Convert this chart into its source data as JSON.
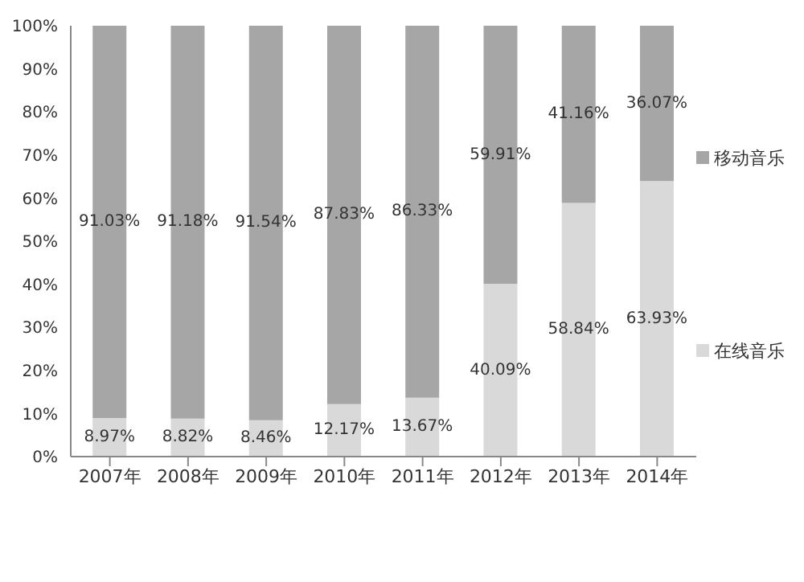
{
  "chart_data": {
    "type": "bar",
    "stacked": true,
    "categories": [
      "2007年",
      "2008年",
      "2009年",
      "2010年",
      "2011年",
      "2012年",
      "2013年",
      "2014年"
    ],
    "series": [
      {
        "name": "在线音乐",
        "color": "#d9d9d9",
        "values": [
          8.97,
          8.82,
          8.46,
          12.17,
          13.67,
          40.09,
          58.84,
          63.93
        ],
        "value_labels": [
          "8.97%",
          "8.82%",
          "8.46%",
          "12.17%",
          "13.67%",
          "40.09%",
          "58.84%",
          "63.93%"
        ]
      },
      {
        "name": "移动音乐",
        "color": "#a6a6a6",
        "values": [
          91.03,
          91.18,
          91.54,
          87.83,
          86.33,
          59.91,
          41.16,
          36.07
        ],
        "value_labels": [
          "91.03%",
          "91.18%",
          "91.54%",
          "87.83%",
          "86.33%",
          "59.91%",
          "41.16%",
          "36.07%"
        ]
      }
    ],
    "ylim": [
      0,
      100
    ],
    "yticks": [
      {
        "value": 0,
        "label": "0%"
      },
      {
        "value": 10,
        "label": "10%"
      },
      {
        "value": 20,
        "label": "20%"
      },
      {
        "value": 30,
        "label": "30%"
      },
      {
        "value": 40,
        "label": "40%"
      },
      {
        "value": 50,
        "label": "50%"
      },
      {
        "value": 60,
        "label": "60%"
      },
      {
        "value": 70,
        "label": "70%"
      },
      {
        "value": 80,
        "label": "80%"
      },
      {
        "value": 90,
        "label": "90%"
      },
      {
        "value": 100,
        "label": "100%"
      }
    ],
    "grid": false,
    "legend": "right"
  }
}
